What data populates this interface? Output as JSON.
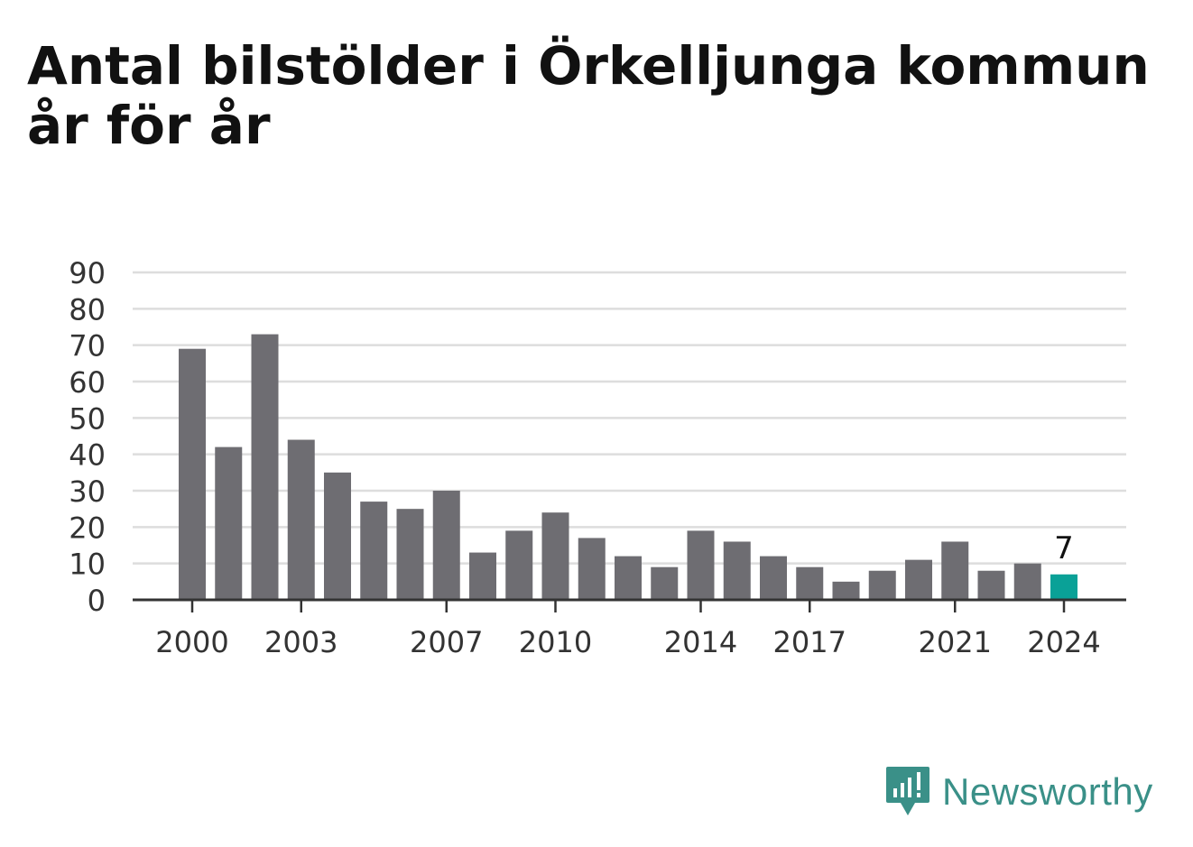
{
  "title": "Antal bilstölder i Örkelljunga kommun år för år",
  "brand": {
    "name": "Newsworthy",
    "icon": "newsworthy-logo-icon"
  },
  "colors": {
    "bar": "#6e6d72",
    "highlight": "#0aa197",
    "grid": "#dddddd",
    "axis": "#333333",
    "brand": "#3a9088"
  },
  "chart_data": {
    "type": "bar",
    "title": "Antal bilstölder i Örkelljunga kommun år för år",
    "xlabel": "",
    "ylabel": "",
    "ylim": [
      0,
      90
    ],
    "yticks": [
      0,
      10,
      20,
      30,
      40,
      50,
      60,
      70,
      80,
      90
    ],
    "xtick_labels": [
      "2000",
      "2003",
      "2007",
      "2010",
      "2014",
      "2017",
      "2021",
      "2024"
    ],
    "categories": [
      "2000",
      "2001",
      "2002",
      "2003",
      "2004",
      "2005",
      "2006",
      "2007",
      "2008",
      "2009",
      "2010",
      "2011",
      "2012",
      "2013",
      "2014",
      "2015",
      "2016",
      "2017",
      "2018",
      "2019",
      "2020",
      "2021",
      "2022",
      "2023",
      "2024"
    ],
    "values": [
      69,
      42,
      73,
      44,
      35,
      27,
      25,
      30,
      13,
      19,
      24,
      17,
      12,
      9,
      19,
      16,
      12,
      9,
      5,
      8,
      11,
      16,
      8,
      10,
      7
    ],
    "highlight": {
      "category": "2024",
      "label": "7"
    },
    "grid": true
  }
}
